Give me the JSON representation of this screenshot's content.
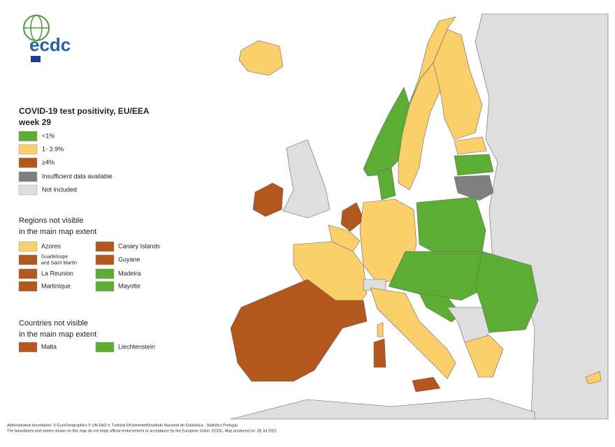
{
  "logo": {
    "name": "ecdc"
  },
  "title": {
    "lines": [
      "COVID-19 test positivity, EU/EEA",
      "week 29"
    ]
  },
  "legend": [
    {
      "label": "<1%",
      "color": "#5cad34"
    },
    {
      "label": "1- 3.9%",
      "color": "#fbd06a"
    },
    {
      "label": "≥4%",
      "color": "#b3571d"
    },
    {
      "label": "Insufficient data available",
      "color": "#7f7f7f"
    },
    {
      "label": "Not included",
      "color": "#dedede"
    }
  ],
  "regions": {
    "header": [
      "Regions not visible",
      "in the main map extent"
    ],
    "items": [
      {
        "lines": [
          "Azores"
        ],
        "color": "#fbd06a"
      },
      {
        "lines": [
          "Guadeloupe",
          "and Saint Martin"
        ],
        "color": "#b3571d"
      },
      {
        "lines": [
          "La Reunion"
        ],
        "color": "#b3571d"
      },
      {
        "lines": [
          "Martinique"
        ],
        "color": "#b3571d"
      },
      {
        "lines": [
          "Canary Islands"
        ],
        "color": "#b3571d"
      },
      {
        "lines": [
          "Guyane"
        ],
        "color": "#b3571d"
      },
      {
        "lines": [
          "Madeira"
        ],
        "color": "#5cad34"
      },
      {
        "lines": [
          "Mayotte"
        ],
        "color": "#5cad34"
      }
    ]
  },
  "countries": {
    "header": [
      "Countries not visible",
      "in the main map extent"
    ],
    "items": [
      {
        "lines": [
          "Malta"
        ],
        "color": "#b3571d"
      },
      {
        "lines": [
          "Liechtenstein"
        ],
        "color": "#5cad34"
      }
    ]
  },
  "footer": [
    "Administrative boundaries: © EuroGeographics © UN-FAO © Turkstat ©Kartverket©Instituto Nacional de Estatística - Statistics Portugal.",
    "The boundaries and names shown on this map do not imply official endorsement or acceptance by the European Union. ECDC. Map produced on: 28 Jul 2021"
  ]
}
